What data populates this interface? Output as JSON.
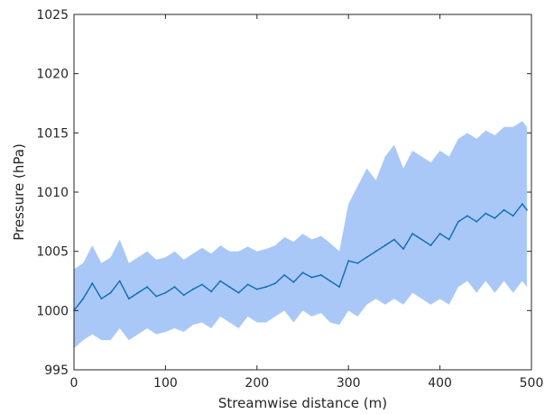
{
  "chart_data": {
    "type": "line",
    "title": "",
    "xlabel": "Streamwise distance (m)",
    "ylabel": "Pressure (hPa)",
    "xlim": [
      0,
      500
    ],
    "ylim": [
      995,
      1025
    ],
    "xticks": [
      0,
      100,
      200,
      300,
      400,
      500
    ],
    "yticks": [
      995,
      1000,
      1005,
      1010,
      1015,
      1020,
      1025
    ],
    "grid": false,
    "legend": "none",
    "colors": {
      "line": "#0c6bb8",
      "band": "#a9c8f7",
      "axis": "#262626"
    },
    "series": [
      {
        "kind": "mean-line",
        "x": [
          0,
          10,
          20,
          30,
          40,
          50,
          60,
          70,
          80,
          90,
          100,
          110,
          120,
          130,
          140,
          150,
          160,
          170,
          180,
          190,
          200,
          210,
          220,
          230,
          240,
          250,
          260,
          270,
          280,
          290,
          300,
          310,
          320,
          330,
          340,
          350,
          360,
          370,
          380,
          390,
          400,
          410,
          420,
          430,
          440,
          450,
          460,
          470,
          480,
          490,
          495
        ],
        "values": [
          1000.0,
          1001.0,
          1002.3,
          1001.0,
          1001.5,
          1002.5,
          1001.0,
          1001.5,
          1002.0,
          1001.2,
          1001.5,
          1002.0,
          1001.3,
          1001.8,
          1002.2,
          1001.6,
          1002.5,
          1002.0,
          1001.5,
          1002.2,
          1001.8,
          1002.0,
          1002.3,
          1003.0,
          1002.4,
          1003.2,
          1002.8,
          1003.0,
          1002.5,
          1002.0,
          1004.2,
          1004.0,
          1004.5,
          1005.0,
          1005.5,
          1006.0,
          1005.2,
          1006.5,
          1006.0,
          1005.5,
          1006.5,
          1006.0,
          1007.5,
          1008.0,
          1007.5,
          1008.2,
          1007.8,
          1008.5,
          1008.0,
          1009.0,
          1008.5
        ]
      },
      {
        "kind": "variability-band",
        "x": [
          0,
          10,
          20,
          30,
          40,
          50,
          60,
          70,
          80,
          90,
          100,
          110,
          120,
          130,
          140,
          150,
          160,
          170,
          180,
          190,
          200,
          210,
          220,
          230,
          240,
          250,
          260,
          270,
          280,
          290,
          300,
          310,
          320,
          330,
          340,
          350,
          360,
          370,
          380,
          390,
          400,
          410,
          420,
          430,
          440,
          450,
          460,
          470,
          480,
          490,
          495
        ],
        "upper": [
          1003.5,
          1004.0,
          1005.5,
          1004.0,
          1004.5,
          1006.0,
          1004.0,
          1004.5,
          1005.0,
          1004.3,
          1004.5,
          1005.0,
          1004.3,
          1004.8,
          1005.3,
          1004.8,
          1005.5,
          1005.0,
          1005.0,
          1005.4,
          1005.0,
          1005.2,
          1005.5,
          1006.2,
          1005.8,
          1006.5,
          1006.0,
          1006.3,
          1005.7,
          1005.0,
          1009.0,
          1010.5,
          1012.0,
          1011.0,
          1013.0,
          1014.0,
          1012.0,
          1013.5,
          1013.0,
          1012.5,
          1013.5,
          1013.0,
          1014.5,
          1015.0,
          1014.5,
          1015.2,
          1014.8,
          1015.5,
          1015.5,
          1016.0,
          1015.5
        ],
        "lower": [
          996.8,
          997.5,
          998.0,
          997.5,
          997.5,
          998.5,
          997.5,
          998.0,
          998.5,
          998.0,
          998.2,
          998.5,
          998.2,
          998.8,
          999.0,
          998.5,
          999.5,
          999.0,
          998.5,
          999.5,
          999.0,
          999.0,
          999.5,
          1000.0,
          999.0,
          1000.0,
          999.5,
          999.8,
          999.0,
          998.8,
          1000.0,
          999.5,
          1000.5,
          1001.0,
          1000.5,
          1001.0,
          1000.5,
          1001.5,
          1001.0,
          1000.5,
          1001.0,
          1000.5,
          1002.0,
          1002.5,
          1001.5,
          1002.5,
          1001.5,
          1002.5,
          1001.5,
          1002.5,
          1002.0
        ]
      }
    ]
  }
}
